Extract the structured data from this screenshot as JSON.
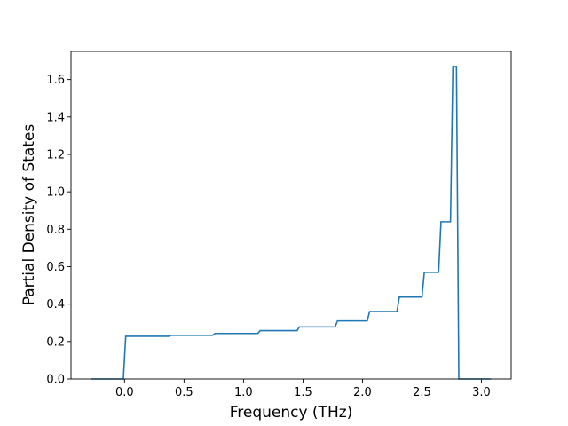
{
  "chart_data": {
    "type": "line",
    "title": "",
    "xlabel": "Frequency (THz)",
    "ylabel": "Partial Density of States",
    "xlim": [
      -0.45,
      3.25
    ],
    "ylim": [
      0.0,
      1.75
    ],
    "xticks": [
      0.0,
      0.5,
      1.0,
      1.5,
      2.0,
      2.5,
      3.0
    ],
    "xtick_labels": [
      "0.0",
      "0.5",
      "1.0",
      "1.5",
      "2.0",
      "2.5",
      "3.0"
    ],
    "yticks": [
      0.0,
      0.2,
      0.4,
      0.6,
      0.8,
      1.0,
      1.2,
      1.4,
      1.6
    ],
    "ytick_labels": [
      "0.0",
      "0.2",
      "0.4",
      "0.6",
      "0.8",
      "1.0",
      "1.2",
      "1.4",
      "1.6"
    ],
    "grid": false,
    "line_color": "#1f77b4",
    "series": [
      {
        "x": [
          -0.28,
          -0.01,
          0.01,
          0.37,
          0.39,
          0.74,
          0.76,
          1.12,
          1.14,
          1.45,
          1.47,
          1.77,
          1.79,
          2.04,
          2.06,
          2.29,
          2.31,
          2.5,
          2.52,
          2.64,
          2.66,
          2.74,
          2.76,
          2.79,
          2.81,
          3.08
        ],
        "y": [
          0.0,
          0.0,
          0.228,
          0.228,
          0.233,
          0.233,
          0.243,
          0.243,
          0.258,
          0.258,
          0.278,
          0.278,
          0.31,
          0.31,
          0.36,
          0.36,
          0.438,
          0.438,
          0.57,
          0.57,
          0.84,
          0.84,
          1.67,
          1.67,
          0.0,
          0.0
        ]
      }
    ]
  }
}
